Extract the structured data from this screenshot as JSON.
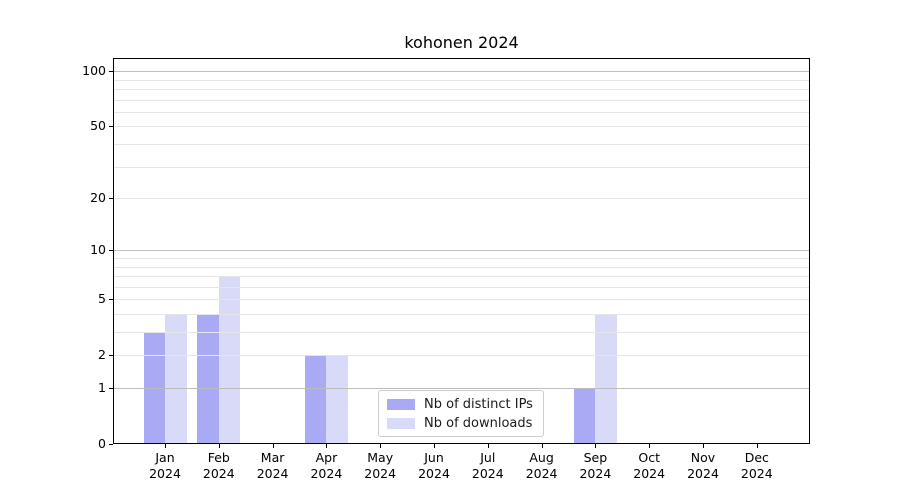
{
  "chart_data": {
    "type": "bar",
    "title": "kohonen 2024",
    "categories": [
      "Jan",
      "Feb",
      "Mar",
      "Apr",
      "May",
      "Jun",
      "Jul",
      "Aug",
      "Sep",
      "Oct",
      "Nov",
      "Dec"
    ],
    "category_year": "2024",
    "series": [
      {
        "name": "Nb of distinct IPs",
        "slug": "distinct-ips",
        "color": "#a9a9f4",
        "values": [
          3,
          4,
          0,
          2,
          0,
          0,
          0,
          0,
          1,
          0,
          0,
          0
        ]
      },
      {
        "name": "Nb of downloads",
        "slug": "downloads",
        "color": "#d9d9f8",
        "values": [
          4,
          7,
          0,
          2,
          0,
          0,
          0,
          0,
          4,
          0,
          0,
          0
        ]
      }
    ],
    "yscale": "log1p",
    "ylim": [
      0,
      118
    ],
    "yticks": [
      0,
      1,
      2,
      5,
      10,
      20,
      50,
      100
    ],
    "minor_yticks": [
      3,
      4,
      6,
      7,
      8,
      9,
      30,
      40,
      60,
      70,
      80,
      90
    ],
    "major_gridline_values": [
      1,
      10,
      100
    ],
    "grid": "horizontal",
    "legend_position": "lower center"
  },
  "colors": {
    "major_grid": "#bdbdbd",
    "minor_grid": "#e6e6e6",
    "axis": "#000000"
  }
}
